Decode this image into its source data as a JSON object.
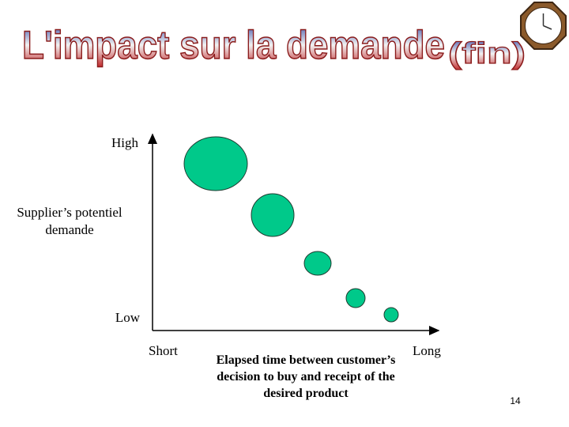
{
  "header": {
    "title": "L'impact sur la demande",
    "title_suffix": "(fin)"
  },
  "diagram": {
    "y_axis": {
      "top": "High",
      "label_lines": [
        "Supplier’s  potentiel",
        "demande"
      ],
      "bottom": "Low"
    },
    "x_axis": {
      "left": "Short",
      "label_lines": [
        "Elapsed time between customer’s",
        "decision to buy and receipt of the",
        "desired product"
      ],
      "right": "Long"
    }
  },
  "footer": {
    "page_number": "14"
  }
}
